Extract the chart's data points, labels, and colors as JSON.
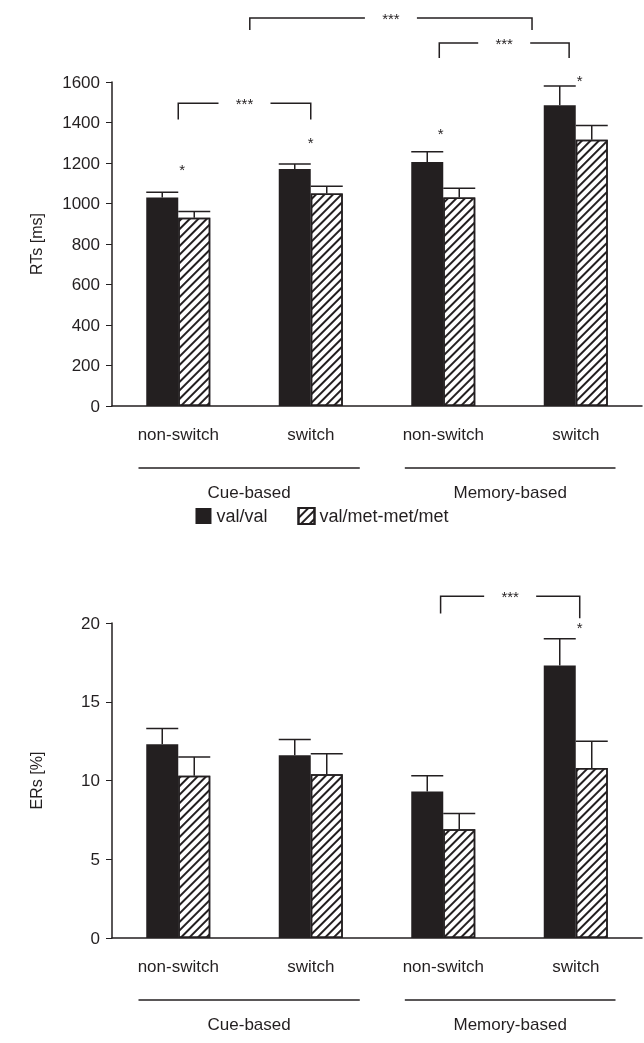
{
  "chart_data": [
    {
      "type": "bar",
      "ylabel": "RTs [ms]",
      "categories": [
        "non-switch",
        "switch",
        "non-switch",
        "switch"
      ],
      "series": [
        {
          "name": "val/val",
          "color": "#231f20",
          "values": [
            1030,
            1170,
            1205,
            1485
          ],
          "errors": [
            [
              1030,
              1055
            ],
            [
              1170,
              1195
            ],
            [
              1205,
              1255
            ],
            [
              1485,
              1580
            ]
          ]
        },
        {
          "name": "val/met-met/met",
          "color": "#ffffff",
          "values": [
            930,
            1050,
            1030,
            1315
          ],
          "errors": [
            [
              930,
              960
            ],
            [
              1050,
              1085
            ],
            [
              1030,
              1075
            ],
            [
              1315,
              1385
            ]
          ]
        }
      ],
      "ylim": [
        0,
        1600
      ],
      "yticks": [
        0,
        200,
        400,
        600,
        800,
        1000,
        1200,
        1400,
        1600
      ],
      "legend": "bottom",
      "annotations": [
        "***",
        "***",
        "***",
        "*",
        "*",
        "*",
        "*",
        "Cue-based",
        "Memory-based"
      ]
    },
    {
      "type": "bar",
      "ylabel": "ERs [%]",
      "categories": [
        "non-switch",
        "switch",
        "non-switch",
        "switch"
      ],
      "series": [
        {
          "color": "#231f20",
          "values": [
            12.3,
            11.6,
            9.3,
            17.3
          ],
          "errors": [
            [
              12.3,
              13.3
            ],
            [
              11.6,
              12.6
            ],
            [
              9.3,
              10.3
            ],
            [
              17.3,
              19.0
            ]
          ]
        },
        {
          "color": "#ffffff",
          "values": [
            10.3,
            10.4,
            6.9,
            10.8
          ],
          "errors": [
            [
              10.3,
              11.5
            ],
            [
              10.4,
              11.7
            ],
            [
              6.9,
              7.9
            ],
            [
              10.8,
              12.5
            ]
          ]
        }
      ],
      "ylim": [
        0,
        20
      ],
      "yticks": [
        0,
        5,
        10,
        15,
        20
      ],
      "annotations": [
        "***",
        "*",
        "Cue-based",
        "Memory-based"
      ]
    }
  ]
}
